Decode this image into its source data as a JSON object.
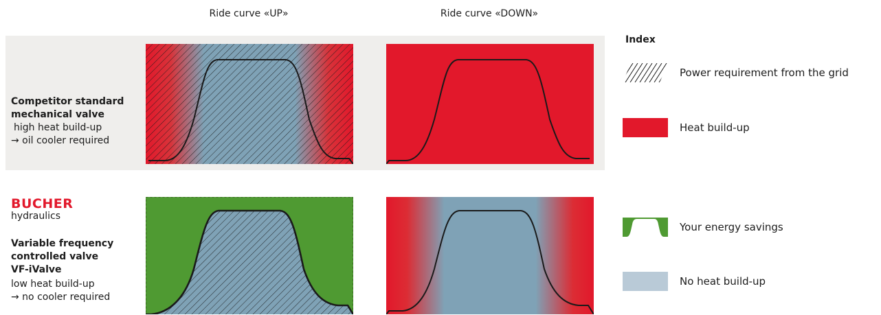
{
  "columns": {
    "up": "Ride curve «UP»",
    "down": "Ride curve «DOWN»"
  },
  "rows": {
    "competitor": {
      "title_line1": "Competitor standard",
      "title_line2": "mechanical valve",
      "note_line1": "high heat build-up",
      "note_line2": "→ oil cooler required"
    },
    "bucher": {
      "brand_name": "BUCHER",
      "brand_sub": "hydraulics",
      "title_line1": "Variable frequency",
      "title_line2": "controlled valve",
      "title_line3": "VF-iValve",
      "note_line1": "low heat build-up",
      "note_line2": "→ no cooler required"
    }
  },
  "index": {
    "title": "Index",
    "items": [
      {
        "label": "Power requirement from the grid",
        "icon": "hatch-icon"
      },
      {
        "label": "Heat build-up",
        "icon": "red-swatch-icon",
        "color": "#e2182b"
      },
      {
        "label": "Your energy savings",
        "icon": "green-trapezoid-icon",
        "color": "#4f9a32"
      },
      {
        "label": "No heat build-up",
        "icon": "blue-swatch-icon",
        "color": "#b9cad7"
      }
    ]
  },
  "colors": {
    "heat": "#e2182b",
    "savings": "#4f9a32",
    "no_heat": "#7fa2b6",
    "no_heat_light": "#b9cad7",
    "band": "#efeeec",
    "brand": "#e2182b"
  }
}
